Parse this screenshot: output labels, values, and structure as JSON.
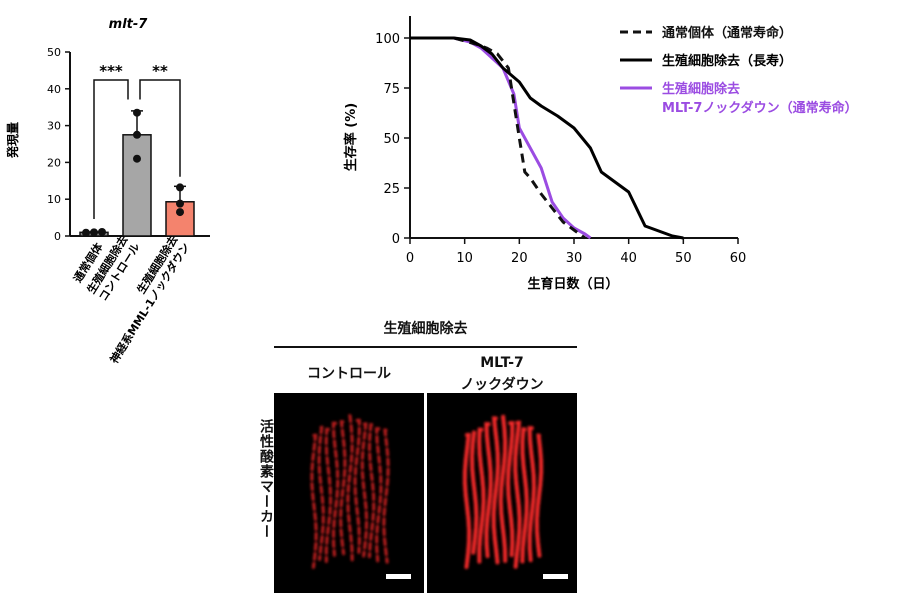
{
  "chart_data": [
    {
      "type": "bar",
      "title": "mlt-7",
      "ylabel": "発現量",
      "ylim": [
        0,
        50
      ],
      "yticks": [
        0,
        10,
        20,
        30,
        40,
        50
      ],
      "categories": [
        "通常個体",
        "生殖細胞除去\nコントロール",
        "生殖細胞除去\n神経系MML-1ノックダウン"
      ],
      "values": [
        1,
        27.5,
        9.3
      ],
      "error_upper": [
        1.1,
        34,
        13.5
      ],
      "points": [
        [
          0.9,
          1,
          1.1
        ],
        [
          21,
          27.5,
          33.5
        ],
        [
          6.5,
          8.8,
          13.2
        ]
      ],
      "colors": [
        "#888888",
        "#a6a6a6",
        "#f4836d"
      ],
      "significance": [
        "***",
        "**"
      ]
    },
    {
      "type": "line",
      "xlabel": "生育日数（日）",
      "ylabel": "生存率 (%)",
      "xlim": [
        0,
        60
      ],
      "ylim": [
        0,
        100
      ],
      "xticks": [
        0,
        10,
        20,
        30,
        40,
        50,
        60
      ],
      "yticks": [
        0,
        25,
        50,
        75,
        100
      ],
      "series": [
        {
          "name": "通常個体（通常寿命）",
          "color": "#111111",
          "style": "dashed",
          "x": [
            0,
            8,
            12,
            14,
            16,
            18,
            20,
            21,
            22,
            24,
            26,
            28,
            30,
            32
          ],
          "y": [
            100,
            100,
            97,
            95,
            92,
            85,
            50,
            33,
            30,
            22,
            15,
            8,
            4,
            0
          ]
        },
        {
          "name": "生殖細胞除去（長寿）",
          "color": "#000000",
          "style": "solid",
          "x": [
            0,
            8,
            11,
            13,
            15,
            17,
            20,
            22,
            24,
            27,
            30,
            33,
            35,
            38,
            40,
            43,
            46,
            48,
            50
          ],
          "y": [
            100,
            100,
            99,
            96,
            92,
            85,
            78,
            70,
            66,
            61,
            55,
            45,
            33,
            27,
            23,
            6,
            3,
            1,
            0
          ]
        },
        {
          "name": "生殖細胞除去\nMLT-7ノックダウン（通常寿命）",
          "color": "#9b4ce2",
          "style": "solid",
          "x": [
            0,
            8,
            11,
            13,
            15,
            17,
            19,
            20,
            22,
            24,
            26,
            28,
            30,
            32,
            33
          ],
          "y": [
            100,
            100,
            98,
            95,
            90,
            85,
            72,
            55,
            45,
            35,
            18,
            10,
            5,
            2,
            0
          ]
        }
      ],
      "legend_position": "top-right"
    }
  ],
  "legend": {
    "entries": [
      {
        "line1": "通常個体（通常寿命）",
        "line2": "",
        "color": "#111111",
        "style": "dashed"
      },
      {
        "line1": "生殖細胞除去（長寿）",
        "line2": "",
        "color": "#000000",
        "style": "solid"
      },
      {
        "line1": "生殖細胞除去",
        "line2": "MLT-7ノックダウン（通常寿命）",
        "color": "#9b4ce2",
        "style": "solid"
      }
    ]
  },
  "bar_labels": {
    "cat1": "通常個体",
    "cat2a": "生殖細胞除去",
    "cat2b": "コントロール",
    "cat3a": "生殖細胞除去",
    "cat3b": "神経系MML-1ノックダウン"
  },
  "images": {
    "group_title": "生殖細胞除去",
    "col1_label": "コントロール",
    "col2_label_1": "MLT-7",
    "col2_label_2": "ノックダウン",
    "row_label": "活性酸素マーカー",
    "stain_color": "#ff2a2a"
  }
}
